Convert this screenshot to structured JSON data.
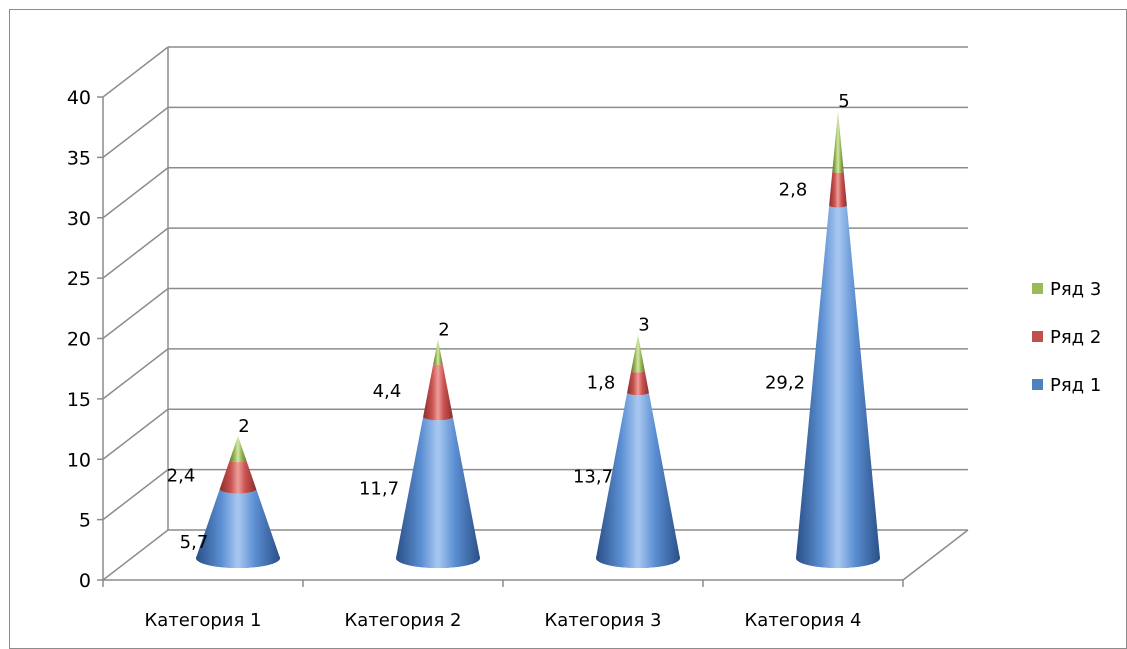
{
  "chart_data": {
    "type": "bar",
    "subtype": "stacked-3d-cone",
    "categories": [
      "Категория 1",
      "Категория 2",
      "Категория 3",
      "Категория 4"
    ],
    "series": [
      {
        "name": "Ряд 1",
        "values": [
          5.7,
          11.7,
          13.7,
          29.2
        ],
        "labels": [
          "5,7",
          "11,7",
          "13,7",
          "29,2"
        ],
        "color": "#4f81bd"
      },
      {
        "name": "Ряд 2",
        "values": [
          2.4,
          4.4,
          1.8,
          2.8
        ],
        "labels": [
          "2,4",
          "4,4",
          "1,8",
          "2,8"
        ],
        "color": "#c0504d"
      },
      {
        "name": "Ряд 3",
        "values": [
          2,
          2,
          3,
          5
        ],
        "labels": [
          "2",
          "2",
          "3",
          "5"
        ],
        "color": "#9bbb59"
      }
    ],
    "yticks": [
      "0",
      "5",
      "10",
      "15",
      "20",
      "25",
      "30",
      "35",
      "40"
    ],
    "ylim": [
      0,
      40
    ],
    "grid": true,
    "legend": "right"
  }
}
